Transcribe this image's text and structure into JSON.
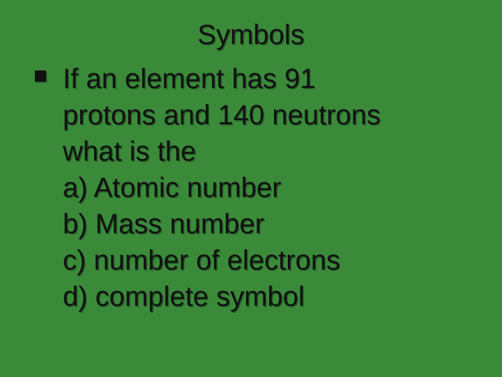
{
  "slide": {
    "background_color": "#3a8a3a",
    "text_color": "#111111",
    "title_fontsize": 40,
    "body_fontsize": 40,
    "font_family": "Arial",
    "title": "Symbols",
    "bullet_glyph": "square",
    "body_lines": [
      "If an element has  91",
      "protons and 140 neutrons",
      "what is the",
      "a) Atomic number",
      "b) Mass number",
      "c) number of electrons",
      "d) complete symbol"
    ]
  }
}
